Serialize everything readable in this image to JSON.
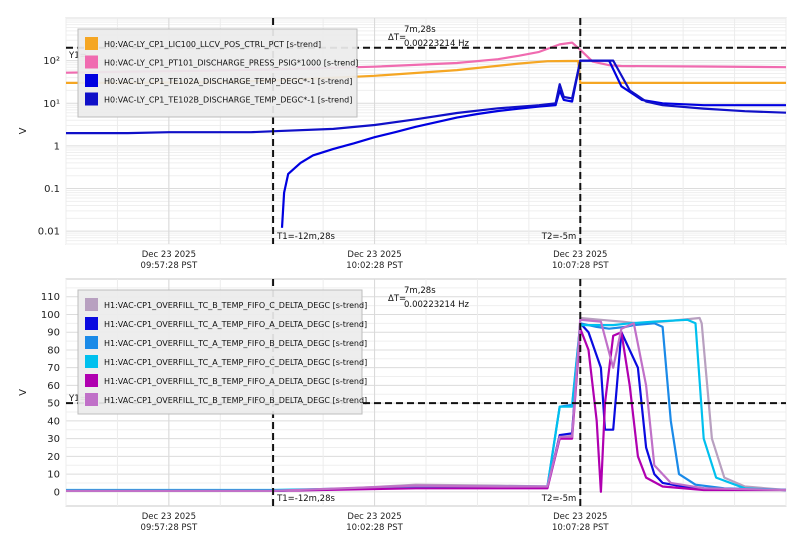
{
  "chart_data": [
    {
      "type": "line",
      "ylabel": "V",
      "yscale": "log",
      "ylim": [
        0.005,
        1000
      ],
      "yticks": [
        "0.01",
        "0.1",
        "1",
        "10¹",
        "10²"
      ],
      "x_tick_labels": [
        [
          "Dec 23 2025",
          "09:57:28 PST"
        ],
        [
          "Dec 23 2025",
          "10:02:28 PST"
        ],
        [
          "Dec 23 2025",
          "10:07:28 PST"
        ]
      ],
      "cursor_y_label": "Y1=",
      "cursor_y_value": 200,
      "cursor_t1_label": "T1=-12m,28s",
      "cursor_t2_label": "T2=-5m",
      "delta_label": "ΔT=",
      "delta_time": "7m,28s",
      "delta_freq": "0.00223214 Hz",
      "legend_position": "top-left",
      "grid": true,
      "series": [
        {
          "name": "H0:VAC-LY_CP1_LIC100_LLCV_POS_CTRL_PCT [s-trend]",
          "color": "#f5a623",
          "points": [
            [
              -17.5,
              30
            ],
            [
              -16,
              30
            ],
            [
              -14,
              31
            ],
            [
              -12.5,
              34
            ],
            [
              -10,
              44
            ],
            [
              -8,
              60
            ],
            [
              -6.5,
              85
            ],
            [
              -5.8,
              97
            ],
            [
              -5.3,
              98
            ],
            [
              -5.05,
              98
            ],
            [
              -5.0,
              30
            ],
            [
              -3,
              30
            ],
            [
              0,
              30
            ]
          ]
        },
        {
          "name": "H0:VAC-LY_CP1_PT101_DISCHARGE_PRESS_PSIG*1000 [s-trend]",
          "color": "#f06bb0",
          "points": [
            [
              -17.5,
              52
            ],
            [
              -16,
              55
            ],
            [
              -14,
              58
            ],
            [
              -12.5,
              62
            ],
            [
              -10,
              72
            ],
            [
              -8,
              88
            ],
            [
              -7,
              108
            ],
            [
              -6.5,
              130
            ],
            [
              -6,
              160
            ],
            [
              -5.5,
              240
            ],
            [
              -5.2,
              265
            ],
            [
              -5.0,
              180
            ],
            [
              -4.7,
              95
            ],
            [
              -4.3,
              78
            ],
            [
              -4.0,
              75
            ],
            [
              -2,
              73
            ],
            [
              0,
              70
            ]
          ]
        },
        {
          "name": "H0:VAC-LY_CP1_TE102A_DISCHARGE_TEMP_DEGC*-1 [s-trend]",
          "color": "#0000e0",
          "points": [
            [
              -12.25,
              0.012
            ],
            [
              -12.2,
              0.08
            ],
            [
              -12.1,
              0.22
            ],
            [
              -11.8,
              0.4
            ],
            [
              -11.5,
              0.6
            ],
            [
              -11,
              0.85
            ],
            [
              -10.5,
              1.15
            ],
            [
              -10,
              1.6
            ],
            [
              -9.5,
              2.1
            ],
            [
              -9,
              2.8
            ],
            [
              -8.5,
              3.6
            ],
            [
              -8,
              4.6
            ],
            [
              -7.5,
              5.6
            ],
            [
              -7,
              6.6
            ],
            [
              -6.5,
              7.5
            ],
            [
              -6,
              8.4
            ],
            [
              -5.6,
              9.0
            ],
            [
              -5.5,
              20
            ],
            [
              -5.4,
              12
            ],
            [
              -5.2,
              11
            ],
            [
              -5.0,
              100
            ],
            [
              -4.3,
              100
            ],
            [
              -4.0,
              25
            ],
            [
              -3.5,
              12
            ],
            [
              -3,
              10
            ],
            [
              -2,
              9
            ],
            [
              0,
              9
            ]
          ]
        },
        {
          "name": "H0:VAC-LY_CP1_TE102B_DISCHARGE_TEMP_DEGC*-1 [s-trend]",
          "color": "#1010c8",
          "points": [
            [
              -17.5,
              2.0
            ],
            [
              -16,
              2.0
            ],
            [
              -15,
              2.1
            ],
            [
              -14,
              2.1
            ],
            [
              -13,
              2.1
            ],
            [
              -12.5,
              2.2
            ],
            [
              -11,
              2.5
            ],
            [
              -10,
              3.1
            ],
            [
              -9,
              4.2
            ],
            [
              -8,
              5.9
            ],
            [
              -7,
              7.6
            ],
            [
              -6,
              9.0
            ],
            [
              -5.6,
              10
            ],
            [
              -5.5,
              28
            ],
            [
              -5.4,
              14
            ],
            [
              -5.2,
              13
            ],
            [
              -5.0,
              100
            ],
            [
              -4.2,
              100
            ],
            [
              -3.8,
              20
            ],
            [
              -3.4,
              11
            ],
            [
              -3,
              9
            ],
            [
              -2,
              7.5
            ],
            [
              -1,
              6.5
            ],
            [
              0,
              6
            ]
          ]
        }
      ]
    },
    {
      "type": "line",
      "ylabel": "V",
      "ylim": [
        -8,
        120
      ],
      "yticks": [
        0,
        10,
        20,
        30,
        40,
        50,
        60,
        70,
        80,
        90,
        100,
        110
      ],
      "x_tick_labels": [
        [
          "Dec 23 2025",
          "09:57:28 PST"
        ],
        [
          "Dec 23 2025",
          "10:02:28 PST"
        ],
        [
          "Dec 23 2025",
          "10:07:28 PST"
        ]
      ],
      "cursor_y_label": "Y1=50",
      "cursor_y_value": 50,
      "cursor_t1_label": "T1=-12m,28s",
      "cursor_t2_label": "T2=-5m",
      "delta_label": "ΔT=",
      "delta_time": "7m,28s",
      "delta_freq": "0.00223214 Hz",
      "legend_position": "top-left",
      "grid": true,
      "series": [
        {
          "name": "H1:VAC-CP1_OVERFILL_TC_B_TEMP_FIFO_C_DELTA_DEGC [s-trend]",
          "color": "#b8a0c0",
          "points": [
            [
              -17.5,
              0.5
            ],
            [
              -12.5,
              0.5
            ],
            [
              -11,
              1.5
            ],
            [
              -9,
              4
            ],
            [
              -7,
              3.5
            ],
            [
              -5.8,
              3
            ],
            [
              -5.5,
              30
            ],
            [
              -5.2,
              32
            ],
            [
              -5.0,
              98
            ],
            [
              -4.5,
              97
            ],
            [
              -4.0,
              96
            ],
            [
              -3.6,
              95
            ],
            [
              -3,
              96
            ],
            [
              -2.1,
              98
            ],
            [
              -2.05,
              95
            ],
            [
              -1.8,
              30
            ],
            [
              -1.5,
              8
            ],
            [
              -1,
              3
            ],
            [
              0,
              1
            ]
          ]
        },
        {
          "name": "H1:VAC-CP1_OVERFILL_TC_A_TEMP_FIFO_A_DELTA_DEGC [s-trend]",
          "color": "#0a0ae0",
          "points": [
            [
              -17.5,
              0.5
            ],
            [
              -12.5,
              0.5
            ],
            [
              -9,
              3
            ],
            [
              -7,
              2.5
            ],
            [
              -5.8,
              2.5
            ],
            [
              -5.5,
              32
            ],
            [
              -5.2,
              33
            ],
            [
              -5.0,
              95
            ],
            [
              -4.8,
              90
            ],
            [
              -4.5,
              70
            ],
            [
              -4.4,
              35
            ],
            [
              -4.2,
              35
            ],
            [
              -4.0,
              90
            ],
            [
              -3.6,
              70
            ],
            [
              -3.4,
              25
            ],
            [
              -3.2,
              10
            ],
            [
              -3,
              5
            ],
            [
              -2.5,
              3
            ],
            [
              -2,
              2
            ],
            [
              0,
              1
            ]
          ]
        },
        {
          "name": "H1:VAC-CP1_OVERFILL_TC_A_TEMP_FIFO_B_DELTA_DEGC [s-trend]",
          "color": "#1a8ae8",
          "points": [
            [
              -17.5,
              0.5
            ],
            [
              -12.5,
              0.5
            ],
            [
              -9,
              3
            ],
            [
              -7,
              3
            ],
            [
              -5.8,
              3
            ],
            [
              -5.5,
              48
            ],
            [
              -5.2,
              49
            ],
            [
              -5.0,
              95
            ],
            [
              -4.6,
              93
            ],
            [
              -4.3,
              92
            ],
            [
              -3.9,
              93
            ],
            [
              -3.7,
              94
            ],
            [
              -3.2,
              95
            ],
            [
              -3.0,
              93
            ],
            [
              -2.8,
              40
            ],
            [
              -2.6,
              10
            ],
            [
              -2.2,
              4
            ],
            [
              -1.5,
              2
            ],
            [
              0,
              1
            ]
          ]
        },
        {
          "name": "H1:VAC-CP1_OVERFILL_TC_A_TEMP_FIFO_C_DELTA_DEGC [s-trend]",
          "color": "#00c0ee",
          "points": [
            [
              -17.5,
              1
            ],
            [
              -12.5,
              1
            ],
            [
              -9,
              2.5
            ],
            [
              -7,
              2.5
            ],
            [
              -5.8,
              2.5
            ],
            [
              -5.5,
              48
            ],
            [
              -5.2,
              48
            ],
            [
              -5.0,
              94
            ],
            [
              -4.2,
              94
            ],
            [
              -3.8,
              95
            ],
            [
              -3.2,
              96
            ],
            [
              -2.4,
              97
            ],
            [
              -2.2,
              95
            ],
            [
              -2.0,
              30
            ],
            [
              -1.7,
              8
            ],
            [
              -1,
              2
            ],
            [
              0,
              1
            ]
          ]
        },
        {
          "name": "H1:VAC-CP1_OVERFILL_TC_B_TEMP_FIFO_A_DELTA_DEGC [s-trend]",
          "color": "#b000b0",
          "points": [
            [
              -17.5,
              0.5
            ],
            [
              -12.5,
              0.5
            ],
            [
              -9,
              2
            ],
            [
              -7,
              2
            ],
            [
              -5.8,
              2
            ],
            [
              -5.5,
              30
            ],
            [
              -5.2,
              30
            ],
            [
              -5.0,
              92
            ],
            [
              -4.8,
              80
            ],
            [
              -4.6,
              40
            ],
            [
              -4.5,
              0
            ],
            [
              -4.4,
              50
            ],
            [
              -4.2,
              88
            ],
            [
              -4.0,
              90
            ],
            [
              -3.8,
              60
            ],
            [
              -3.6,
              20
            ],
            [
              -3.4,
              8
            ],
            [
              -3,
              3
            ],
            [
              -2,
              1
            ],
            [
              0,
              1
            ]
          ]
        },
        {
          "name": "H1:VAC-CP1_OVERFILL_TC_B_TEMP_FIFO_B_DELTA_DEGC [s-trend]",
          "color": "#c070c8",
          "points": [
            [
              -17.5,
              0.5
            ],
            [
              -12.5,
              0.5
            ],
            [
              -9,
              3.5
            ],
            [
              -7,
              3
            ],
            [
              -5.8,
              3
            ],
            [
              -5.5,
              31
            ],
            [
              -5.2,
              31
            ],
            [
              -5.0,
              97
            ],
            [
              -4.5,
              96
            ],
            [
              -4.2,
              70
            ],
            [
              -4.0,
              92
            ],
            [
              -3.7,
              95
            ],
            [
              -3.4,
              60
            ],
            [
              -3.2,
              15
            ],
            [
              -2.8,
              5
            ],
            [
              -2,
              2
            ],
            [
              0,
              1
            ]
          ]
        }
      ]
    }
  ]
}
